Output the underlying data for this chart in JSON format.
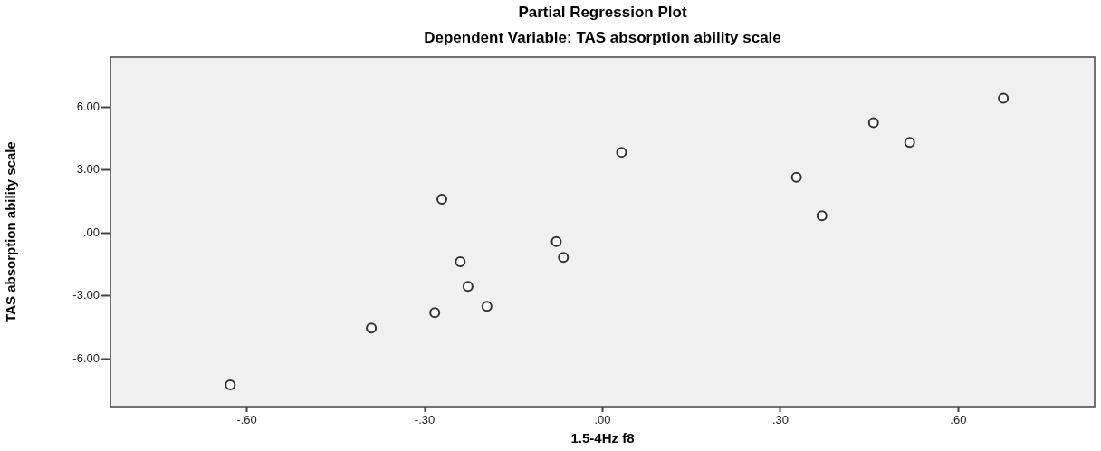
{
  "chart_data": {
    "type": "scatter",
    "title": "Partial Regression Plot",
    "subtitle": "Dependent Variable: TAS absorption ability scale",
    "xlabel": "1.5-4Hz f8",
    "ylabel": "TAS absorption ability scale",
    "marker": "circle",
    "x": [
      0.676,
      0.457,
      0.518,
      0.327,
      0.37,
      0.032,
      -0.271,
      -0.078,
      -0.066,
      -0.24,
      -0.227,
      -0.195,
      -0.283,
      -0.39,
      -0.628
    ],
    "values": [
      6.42,
      5.26,
      4.32,
      2.66,
      0.82,
      3.85,
      1.61,
      -0.41,
      -1.17,
      -1.37,
      -2.55,
      -3.5,
      -3.8,
      -4.53,
      -7.24
    ],
    "color": "#333333",
    "xlim": [
      -0.83,
      0.83
    ],
    "ylim": [
      -8.28,
      8.39
    ],
    "xticks": [
      {
        "value": -0.6,
        "label": "-.60"
      },
      {
        "value": -0.3,
        "label": "-.30"
      },
      {
        "value": 0,
        "label": ".00"
      },
      {
        "value": 0.3,
        "label": ".30"
      },
      {
        "value": 0.6,
        "label": ".60"
      }
    ],
    "yticks": [
      {
        "value": -6,
        "label": "-6.00"
      },
      {
        "value": -3,
        "label": "-3.00"
      },
      {
        "value": 0,
        "label": ".00"
      },
      {
        "value": 3,
        "label": "3.00"
      },
      {
        "value": 6,
        "label": "6.00"
      }
    ],
    "legend": false
  }
}
